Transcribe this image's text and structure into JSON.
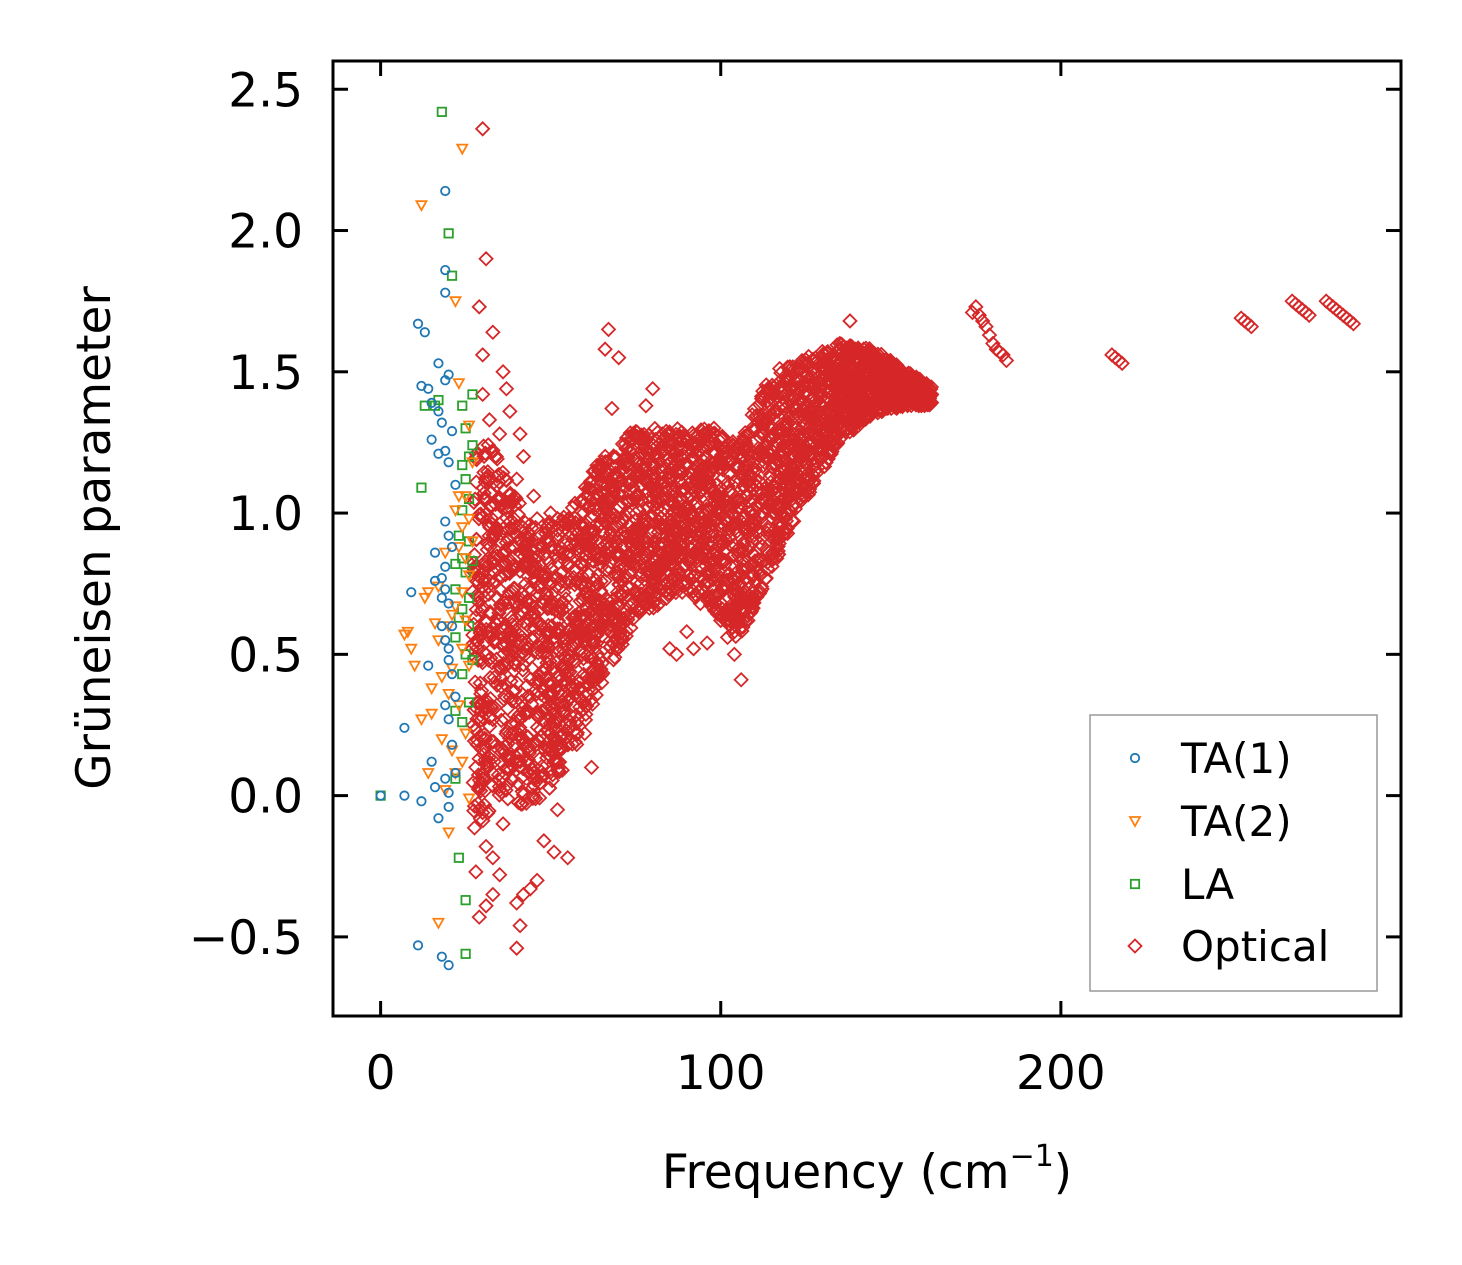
{
  "chart_data": {
    "type": "scatter",
    "title": "",
    "xlabel": "Frequency (cm",
    "xlabel_sup": "−1",
    "xlabel_close": ")",
    "ylabel": "Grüneisen parameter",
    "xlim": [
      -14,
      300
    ],
    "ylim": [
      -0.78,
      2.6
    ],
    "xticks": [
      0,
      100,
      200
    ],
    "yticks": [
      -0.5,
      0.0,
      0.5,
      1.0,
      1.5,
      2.0,
      2.5
    ],
    "xtick_labels": [
      "0",
      "100",
      "200"
    ],
    "ytick_labels": [
      "−0.5",
      "0.0",
      "0.5",
      "1.0",
      "1.5",
      "2.0",
      "2.5"
    ],
    "legend_position": "lower-right",
    "series": [
      {
        "name": "TA(1)",
        "marker": "circle",
        "color": "#1f77b4",
        "points": [
          [
            0,
            0
          ],
          [
            7,
            0
          ],
          [
            11,
            -0.53
          ],
          [
            11,
            1.67
          ],
          [
            12,
            1.45
          ],
          [
            12,
            -0.02
          ],
          [
            13,
            1.64
          ],
          [
            14,
            0.46
          ],
          [
            14,
            1.44
          ],
          [
            15,
            1.39
          ],
          [
            15,
            1.26
          ],
          [
            15,
            0.12
          ],
          [
            16,
            0.86
          ],
          [
            16,
            0.76
          ],
          [
            16,
            0.03
          ],
          [
            17,
            1.21
          ],
          [
            17,
            1.53
          ],
          [
            17,
            1.36
          ],
          [
            17,
            -0.08
          ],
          [
            18,
            -0.57
          ],
          [
            18,
            1.32
          ],
          [
            18,
            0.77
          ],
          [
            18,
            0.7
          ],
          [
            18,
            0.6
          ],
          [
            19,
            0.81
          ],
          [
            19,
            1.22
          ],
          [
            19,
            0.97
          ],
          [
            19,
            0.73
          ],
          [
            19,
            0.55
          ],
          [
            19,
            0.32
          ],
          [
            19,
            0.06
          ],
          [
            19,
            1.47
          ],
          [
            19,
            1.78
          ],
          [
            19,
            1.86
          ],
          [
            19,
            2.14
          ],
          [
            20,
            1.49
          ],
          [
            20,
            1.18
          ],
          [
            20,
            0.92
          ],
          [
            20,
            0.68
          ],
          [
            20,
            0.52
          ],
          [
            20,
            0.48
          ],
          [
            20,
            0.27
          ],
          [
            20,
            0.01
          ],
          [
            20,
            -0.6
          ],
          [
            21,
            1.29
          ],
          [
            21,
            0.88
          ],
          [
            21,
            0.6
          ],
          [
            21,
            0.43
          ],
          [
            21,
            0.18
          ],
          [
            9,
            0.72
          ],
          [
            7,
            0.24
          ],
          [
            20,
            -0.04
          ],
          [
            22,
            0.08
          ],
          [
            22,
            1.1
          ],
          [
            22,
            0.35
          ]
        ]
      },
      {
        "name": "TA(2)",
        "marker": "triangle-down",
        "color": "#ff7f0e",
        "points": [
          [
            7,
            0.57
          ],
          [
            8,
            0.58
          ],
          [
            9,
            0.52
          ],
          [
            10,
            0.46
          ],
          [
            12,
            2.09
          ],
          [
            12,
            0.27
          ],
          [
            14,
            0.08
          ],
          [
            14,
            0.72
          ],
          [
            15,
            0.38
          ],
          [
            15,
            0.29
          ],
          [
            16,
            0.61
          ],
          [
            17,
            0.55
          ],
          [
            17,
            0.74
          ],
          [
            17,
            -0.45
          ],
          [
            18,
            0.42
          ],
          [
            18,
            0.2
          ],
          [
            19,
            0.02
          ],
          [
            20,
            0.36
          ],
          [
            20,
            0.6
          ],
          [
            20,
            -0.13
          ],
          [
            21,
            0.64
          ],
          [
            21,
            0.45
          ],
          [
            21,
            0.16
          ],
          [
            22,
            1.75
          ],
          [
            22,
            0.67
          ],
          [
            22,
            0.08
          ],
          [
            23,
            0.88
          ],
          [
            23,
            1.06
          ],
          [
            23,
            0.32
          ],
          [
            23,
            1.46
          ],
          [
            24,
            0.95
          ],
          [
            24,
            0.72
          ],
          [
            24,
            0.52
          ],
          [
            24,
            0.12
          ],
          [
            24,
            2.29
          ],
          [
            25,
            0.84
          ],
          [
            25,
            1.06
          ],
          [
            25,
            0.62
          ],
          [
            25,
            0.22
          ],
          [
            26,
            0.98
          ],
          [
            26,
            0.78
          ],
          [
            26,
            0.46
          ],
          [
            26,
            -0.01
          ],
          [
            27,
            0.9
          ],
          [
            27,
            1.18
          ],
          [
            22,
            1.01
          ],
          [
            19,
            0.86
          ],
          [
            13,
            0.7
          ],
          [
            26,
            1.31
          ]
        ]
      },
      {
        "name": "LA",
        "marker": "square",
        "color": "#2ca02c",
        "points": [
          [
            0,
            0
          ],
          [
            12,
            1.09
          ],
          [
            13,
            1.38
          ],
          [
            16,
            1.38
          ],
          [
            17,
            1.4
          ],
          [
            18,
            2.42
          ],
          [
            20,
            1.99
          ],
          [
            21,
            1.84
          ],
          [
            22,
            0.73
          ],
          [
            22,
            0.56
          ],
          [
            22,
            0.3
          ],
          [
            22,
            0.06
          ],
          [
            23,
            0.92
          ],
          [
            23,
            -0.22
          ],
          [
            24,
            1.17
          ],
          [
            24,
            1.01
          ],
          [
            24,
            0.84
          ],
          [
            24,
            0.66
          ],
          [
            24,
            0.43
          ],
          [
            24,
            0.26
          ],
          [
            25,
            1.3
          ],
          [
            25,
            1.12
          ],
          [
            25,
            0.79
          ],
          [
            25,
            0.5
          ],
          [
            25,
            -0.37
          ],
          [
            25,
            -0.56
          ],
          [
            26,
            1.2
          ],
          [
            26,
            1.05
          ],
          [
            26,
            0.9
          ],
          [
            26,
            0.6
          ],
          [
            26,
            0.33
          ],
          [
            27,
            1.42
          ],
          [
            27,
            1.24
          ],
          [
            27,
            0.83
          ],
          [
            27,
            0.48
          ],
          [
            22,
            0.82
          ],
          [
            24,
            1.38
          ],
          [
            23,
            0.63
          ],
          [
            26,
            0.7
          ]
        ]
      },
      {
        "name": "Optical",
        "marker": "diamond",
        "color": "#d62728",
        "scatter_points": [
          [
            30,
            2.36
          ],
          [
            31,
            1.9
          ],
          [
            29,
            1.73
          ],
          [
            33,
            1.64
          ],
          [
            30,
            1.56
          ],
          [
            36,
            1.5
          ],
          [
            35,
            1.28
          ],
          [
            38,
            1.36
          ],
          [
            40,
            1.12
          ],
          [
            42,
            1.2
          ],
          [
            45,
            1.06
          ],
          [
            46,
            0.98
          ],
          [
            50,
            1.0
          ],
          [
            28,
            0.1
          ],
          [
            30,
            -0.06
          ],
          [
            31,
            -0.18
          ],
          [
            33,
            -0.35
          ],
          [
            35,
            -0.28
          ],
          [
            36,
            -0.1
          ],
          [
            38,
            0.22
          ],
          [
            40,
            -0.38
          ],
          [
            41,
            -0.46
          ],
          [
            42,
            -0.35
          ],
          [
            44,
            -0.33
          ],
          [
            46,
            -0.3
          ],
          [
            48,
            -0.16
          ],
          [
            51,
            -0.2
          ],
          [
            52,
            -0.05
          ],
          [
            55,
            -0.22
          ],
          [
            30,
            1.42
          ],
          [
            32,
            1.33
          ],
          [
            34,
            1.2
          ],
          [
            37,
            1.44
          ],
          [
            39,
            1.05
          ],
          [
            41,
            1.28
          ],
          [
            40,
            -0.54
          ],
          [
            33,
            -0.22
          ],
          [
            28,
            -0.27
          ],
          [
            29,
            -0.43
          ],
          [
            31,
            -0.39
          ],
          [
            42,
            0.82
          ],
          [
            44,
            0.35
          ],
          [
            48,
            0.3
          ],
          [
            52,
            0.18
          ],
          [
            54,
            0.46
          ],
          [
            60,
            0.22
          ],
          [
            58,
            0.27
          ],
          [
            62,
            0.1
          ],
          [
            65,
            0.4
          ],
          [
            66,
            0.6
          ],
          [
            67,
            1.65
          ],
          [
            66,
            1.58
          ],
          [
            68,
            1.37
          ],
          [
            70,
            1.55
          ],
          [
            72,
            1.2
          ],
          [
            75,
            1.05
          ],
          [
            78,
            1.38
          ],
          [
            80,
            1.44
          ],
          [
            82,
            0.68
          ],
          [
            85,
            0.52
          ],
          [
            87,
            0.5
          ],
          [
            90,
            0.58
          ],
          [
            92,
            0.52
          ],
          [
            94,
            0.68
          ],
          [
            96,
            0.54
          ],
          [
            98,
            1.3
          ],
          [
            100,
            0.62
          ],
          [
            102,
            0.56
          ],
          [
            104,
            0.5
          ],
          [
            106,
            0.41
          ],
          [
            105,
            0.72
          ],
          [
            108,
            0.62
          ],
          [
            112,
            0.74
          ],
          [
            115,
            0.85
          ],
          [
            118,
            1.0
          ],
          [
            120,
            1.05
          ],
          [
            122,
            1.2
          ],
          [
            124,
            1.26
          ],
          [
            126,
            1.22
          ],
          [
            128,
            1.3
          ],
          [
            130,
            1.38
          ],
          [
            138,
            1.68
          ],
          [
            135,
            1.6
          ],
          [
            142,
            1.58
          ],
          [
            145,
            1.55
          ],
          [
            148,
            1.5
          ],
          [
            150,
            1.45
          ],
          [
            152,
            1.38
          ],
          [
            155,
            1.47
          ],
          [
            158,
            1.46
          ],
          [
            160,
            1.4
          ],
          [
            162,
            1.42
          ],
          [
            174,
            1.71
          ],
          [
            175,
            1.73
          ],
          [
            176,
            1.7
          ],
          [
            177,
            1.68
          ],
          [
            178,
            1.66
          ],
          [
            179,
            1.63
          ],
          [
            180,
            1.6
          ],
          [
            181,
            1.58
          ],
          [
            182,
            1.57
          ],
          [
            183,
            1.56
          ],
          [
            184,
            1.54
          ],
          [
            215,
            1.56
          ],
          [
            216,
            1.55
          ],
          [
            217,
            1.54
          ],
          [
            218,
            1.53
          ],
          [
            253,
            1.69
          ],
          [
            254,
            1.68
          ],
          [
            255,
            1.67
          ],
          [
            256,
            1.66
          ],
          [
            268,
            1.75
          ],
          [
            269,
            1.74
          ],
          [
            270,
            1.73
          ],
          [
            271,
            1.72
          ],
          [
            272,
            1.71
          ],
          [
            273,
            1.7
          ],
          [
            278,
            1.75
          ],
          [
            279,
            1.74
          ],
          [
            280,
            1.73
          ],
          [
            281,
            1.72
          ],
          [
            282,
            1.71
          ],
          [
            283,
            1.7
          ],
          [
            284,
            1.69
          ],
          [
            285,
            1.68
          ],
          [
            286,
            1.67
          ]
        ],
        "density_band": {
          "description": "dense cloud of optical modes: lower and upper Grüneisen bounds by frequency",
          "x": [
            27,
            35,
            45,
            55,
            65,
            75,
            85,
            95,
            105,
            115,
            125,
            135,
            145,
            155,
            162
          ],
          "lower": [
            -0.15,
            0.0,
            -0.05,
            0.1,
            0.4,
            0.62,
            0.7,
            0.7,
            0.55,
            0.8,
            1.05,
            1.25,
            1.35,
            1.38,
            1.38
          ],
          "upper": [
            1.3,
            1.2,
            0.95,
            1.0,
            1.2,
            1.3,
            1.3,
            1.3,
            1.25,
            1.5,
            1.55,
            1.6,
            1.58,
            1.5,
            1.45
          ],
          "count": 3600
        }
      }
    ]
  }
}
